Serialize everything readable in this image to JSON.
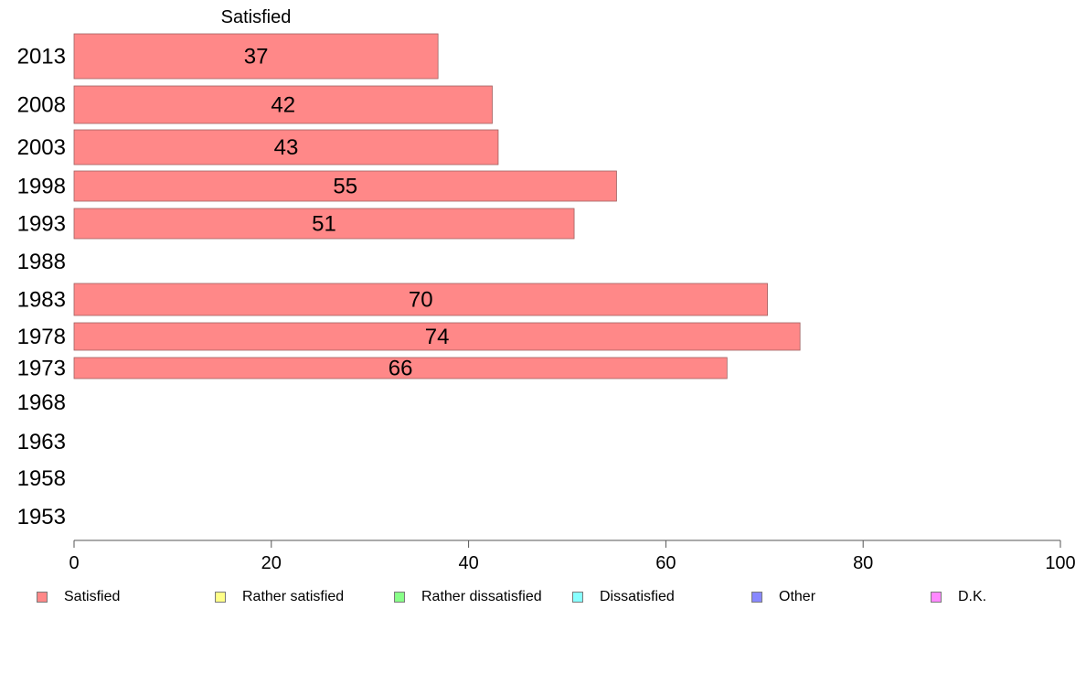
{
  "chart_data": {
    "type": "bar",
    "orientation": "horizontal",
    "top_label": "Satisfied",
    "categories": [
      "2013",
      "2008",
      "2003",
      "1998",
      "1993",
      "1988",
      "1983",
      "1978",
      "1973",
      "1968",
      "1963",
      "1958",
      "1953"
    ],
    "series": [
      {
        "name": "Satisfied",
        "color": "#ff8888",
        "values": [
          37,
          42,
          43,
          55,
          51,
          null,
          70,
          74,
          66,
          null,
          null,
          null,
          null
        ],
        "exact_values": [
          36.9,
          42.4,
          43.0,
          55.0,
          50.7,
          null,
          70.3,
          73.6,
          66.2,
          null,
          null,
          null,
          null
        ]
      }
    ],
    "xlim": [
      0,
      100
    ],
    "xticks": [
      "0",
      "20",
      "40",
      "60",
      "80",
      "100"
    ],
    "grid": false,
    "legend_placement": "bottom"
  },
  "legend": [
    {
      "label": "Satisfied",
      "color": "#ff8888"
    },
    {
      "label": "Rather satisfied",
      "color": "#ffff88"
    },
    {
      "label": "Rather dissatisfied",
      "color": "#88ff88"
    },
    {
      "label": "Dissatisfied",
      "color": "#88ffff"
    },
    {
      "label": "Other",
      "color": "#8888ff"
    },
    {
      "label": "D.K.",
      "color": "#ff88ff"
    }
  ]
}
